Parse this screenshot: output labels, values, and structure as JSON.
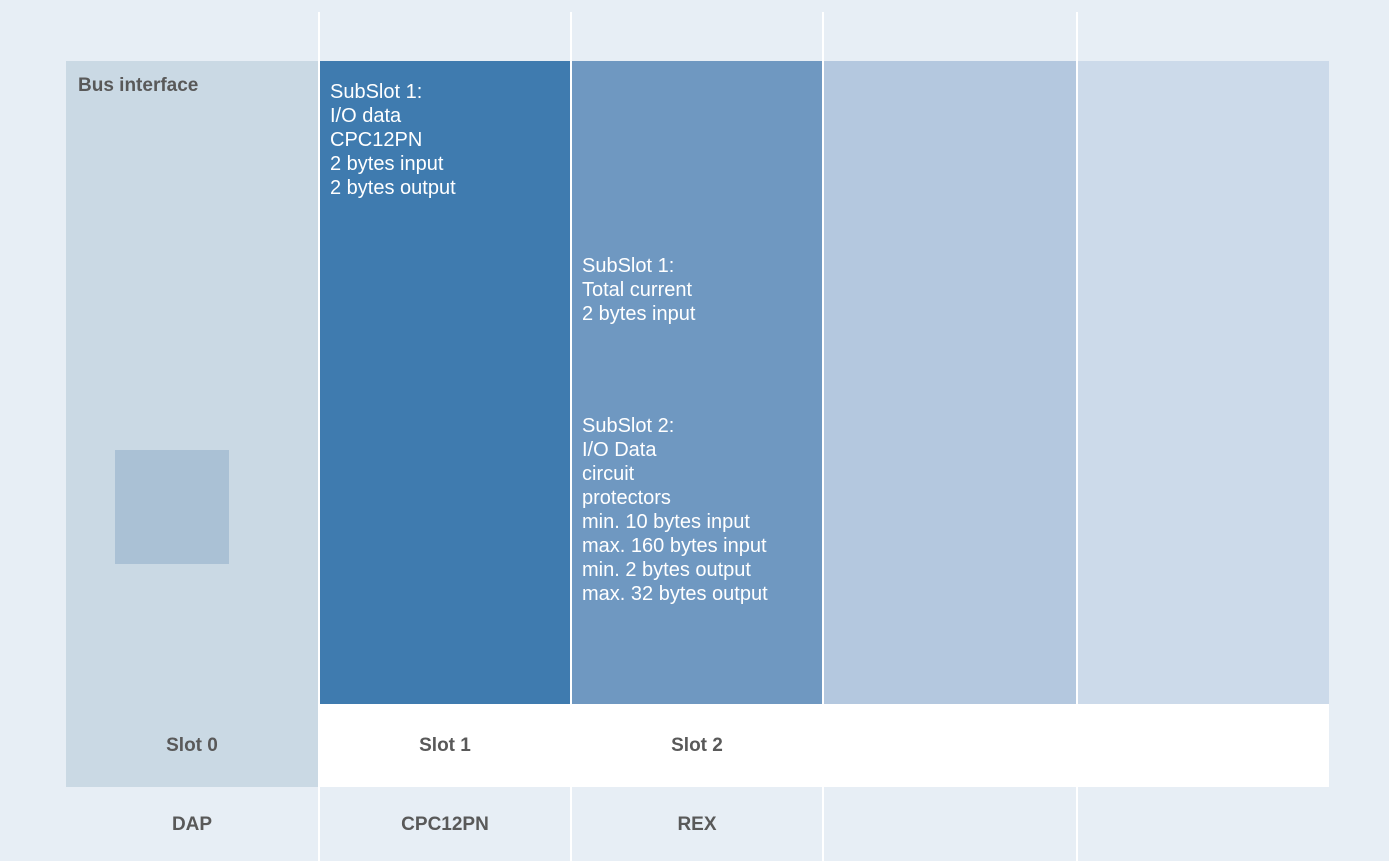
{
  "colors": {
    "background": "#e7eef5",
    "dap_panel": "#cad9e4",
    "dap_square": "#aac1d5",
    "slot1": "#3f7baf",
    "slot2": "#6f98c1",
    "slot3": "#b4c8df",
    "slot4": "#ccdaea",
    "label_text": "#595959"
  },
  "dap": {
    "title": "Bus interface",
    "slot_label": "Slot 0",
    "module_label": "DAP"
  },
  "slot1": {
    "subslot_text": "SubSlot 1:\nI/O data\nCPC12PN\n2 bytes input\n2 bytes output",
    "slot_label": "Slot 1",
    "module_label": "CPC12PN"
  },
  "slot2": {
    "subslot1_text": "SubSlot 1:\nTotal current\n2 bytes input",
    "subslot2_text": "SubSlot 2:\nI/O Data\ncircuit\nprotectors\nmin. 10 bytes input\nmax. 160 bytes input\nmin. 2 bytes output\nmax. 32 bytes output",
    "slot_label": "Slot 2",
    "module_label": "REX"
  }
}
